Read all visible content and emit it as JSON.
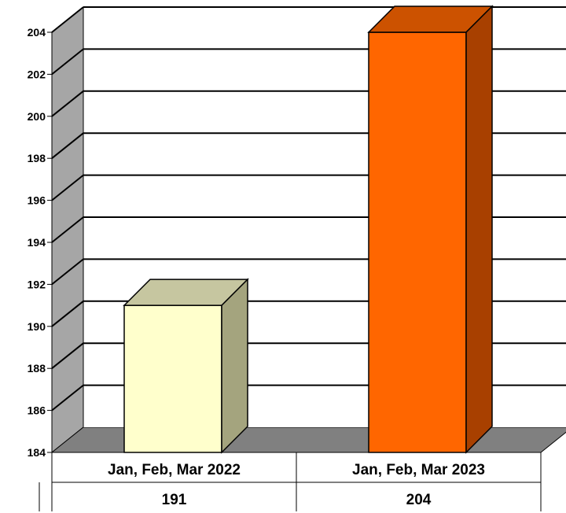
{
  "chart_data": {
    "type": "bar",
    "style": "3d-column",
    "categories": [
      "Jan, Feb, Mar 2022",
      "Jan, Feb, Mar 2023"
    ],
    "values": [
      191,
      204
    ],
    "value_labels": [
      "191",
      "204"
    ],
    "ylim": [
      184,
      204
    ],
    "ytick_step": 2,
    "grid": true,
    "legend": "none",
    "data_table": true,
    "colors": {
      "bars": [
        {
          "front": "#FFFFCC",
          "top": "#C6C6A0",
          "side": "#A4A47E"
        },
        {
          "front": "#FF6600",
          "top": "#CC5200",
          "side": "#A84000"
        }
      ],
      "wall": "#A6A6A6",
      "floor": "#808080",
      "gridline": "#000000"
    }
  }
}
